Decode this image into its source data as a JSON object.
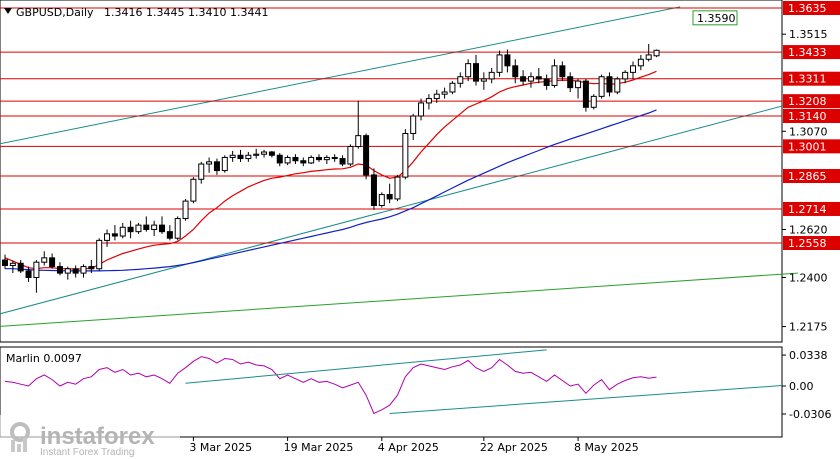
{
  "header": {
    "symbol_label": "GBPUSD,Daily",
    "ohlc_label": "1.3416 1.3445 1.3410 1.3441"
  },
  "indicator": {
    "label": "Marlin 0.0097"
  },
  "watermark": {
    "brand": "instaforex",
    "tagline": "Instant Forex Trading"
  },
  "colors": {
    "level_line": "#dc0000",
    "level_box": "#dc0000",
    "ma_fast": "#e00000",
    "ma_slow": "#1020c8",
    "channel": "#1a8c8c",
    "long_trend": "#2aa02a",
    "oscillator": "#b000b0",
    "osc_trend": "#1a8c8c",
    "candle": "#000000"
  },
  "chart_data": {
    "type": "candlestick",
    "price_axis_ticks": [
      "1.3515",
      "1.3070",
      "1.2620",
      "1.2400",
      "1.2175"
    ],
    "level_labels": [
      "1.3635",
      "1.3433",
      "1.3311",
      "1.3208",
      "1.3140",
      "1.3001",
      "1.2865",
      "1.2714",
      "1.2558"
    ],
    "levels": [
      1.3635,
      1.3433,
      1.3311,
      1.3208,
      1.314,
      1.3001,
      1.2865,
      1.2714,
      1.2558
    ],
    "channel_label": "1.3590",
    "channel_value": 1.359,
    "time_labels": [
      "3 Mar 2025",
      "19 Mar 2025",
      "4 Apr 2025",
      "22 Apr 2025",
      "8 May 2025"
    ],
    "time_label_indices": [
      24,
      36,
      48,
      61,
      73
    ],
    "osc_axis_labels": [
      "0.0338",
      "0.00",
      "-0.0306"
    ],
    "osc_ticks": [
      0.0338,
      0.0,
      -0.0306
    ],
    "candles": [
      [
        1.248,
        1.2505,
        1.244,
        1.2455
      ],
      [
        1.2455,
        1.2478,
        1.242,
        1.2465
      ],
      [
        1.2465,
        1.248,
        1.242,
        1.243
      ],
      [
        1.243,
        1.245,
        1.238,
        1.24
      ],
      [
        1.24,
        1.248,
        1.233,
        1.247
      ],
      [
        1.247,
        1.252,
        1.2455,
        1.249
      ],
      [
        1.249,
        1.251,
        1.244,
        1.245
      ],
      [
        1.245,
        1.247,
        1.241,
        1.242
      ],
      [
        1.242,
        1.245,
        1.239,
        1.244
      ],
      [
        1.244,
        1.2455,
        1.24,
        1.242
      ],
      [
        1.242,
        1.246,
        1.24,
        1.245
      ],
      [
        1.245,
        1.248,
        1.242,
        1.244
      ],
      [
        1.244,
        1.258,
        1.243,
        1.257
      ],
      [
        1.257,
        1.262,
        1.254,
        1.26
      ],
      [
        1.26,
        1.264,
        1.257,
        1.259
      ],
      [
        1.259,
        1.265,
        1.258,
        1.263
      ],
      [
        1.263,
        1.266,
        1.258,
        1.261
      ],
      [
        1.261,
        1.265,
        1.26,
        1.264
      ],
      [
        1.264,
        1.268,
        1.261,
        1.262
      ],
      [
        1.262,
        1.266,
        1.259,
        1.264
      ],
      [
        1.264,
        1.268,
        1.26,
        1.261
      ],
      [
        1.261,
        1.264,
        1.257,
        1.258
      ],
      [
        1.258,
        1.268,
        1.257,
        1.267
      ],
      [
        1.267,
        1.276,
        1.266,
        1.275
      ],
      [
        1.275,
        1.286,
        1.274,
        1.285
      ],
      [
        1.285,
        1.293,
        1.283,
        1.292
      ],
      [
        1.292,
        1.295,
        1.288,
        1.293
      ],
      [
        1.293,
        1.2945,
        1.287,
        1.289
      ],
      [
        1.289,
        1.296,
        1.288,
        1.295
      ],
      [
        1.295,
        1.298,
        1.293,
        1.296
      ],
      [
        1.296,
        1.2985,
        1.293,
        1.2945
      ],
      [
        1.2945,
        1.2975,
        1.293,
        1.296
      ],
      [
        1.296,
        1.299,
        1.2945,
        1.2965
      ],
      [
        1.2965,
        1.2985,
        1.295,
        1.2975
      ],
      [
        1.2975,
        1.298,
        1.295,
        1.296
      ],
      [
        1.296,
        1.297,
        1.291,
        1.2925
      ],
      [
        1.2925,
        1.296,
        1.2915,
        1.295
      ],
      [
        1.295,
        1.2965,
        1.292,
        1.2935
      ],
      [
        1.2935,
        1.295,
        1.291,
        1.2925
      ],
      [
        1.2925,
        1.296,
        1.292,
        1.295
      ],
      [
        1.295,
        1.2965,
        1.293,
        1.294
      ],
      [
        1.294,
        1.296,
        1.292,
        1.295
      ],
      [
        1.295,
        1.2965,
        1.293,
        1.2945
      ],
      [
        1.2945,
        1.296,
        1.291,
        1.292
      ],
      [
        1.292,
        1.301,
        1.291,
        1.3
      ],
      [
        1.3,
        1.321,
        1.299,
        1.305
      ],
      [
        1.305,
        1.306,
        1.285,
        1.287
      ],
      [
        1.287,
        1.29,
        1.271,
        1.273
      ],
      [
        1.273,
        1.279,
        1.272,
        1.278
      ],
      [
        1.278,
        1.283,
        1.274,
        1.276
      ],
      [
        1.276,
        1.287,
        1.275,
        1.286
      ],
      [
        1.286,
        1.308,
        1.285,
        1.306
      ],
      [
        1.306,
        1.315,
        1.303,
        1.314
      ],
      [
        1.314,
        1.322,
        1.312,
        1.32
      ],
      [
        1.32,
        1.324,
        1.317,
        1.322
      ],
      [
        1.322,
        1.326,
        1.32,
        1.324
      ],
      [
        1.324,
        1.327,
        1.322,
        1.325
      ],
      [
        1.325,
        1.33,
        1.324,
        1.329
      ],
      [
        1.329,
        1.334,
        1.327,
        1.332
      ],
      [
        1.332,
        1.34,
        1.33,
        1.338
      ],
      [
        1.338,
        1.342,
        1.328,
        1.33
      ],
      [
        1.33,
        1.334,
        1.326,
        1.331
      ],
      [
        1.331,
        1.336,
        1.329,
        1.334
      ],
      [
        1.334,
        1.344,
        1.332,
        1.342
      ],
      [
        1.342,
        1.3445,
        1.334,
        1.337
      ],
      [
        1.337,
        1.34,
        1.329,
        1.332
      ],
      [
        1.332,
        1.335,
        1.328,
        1.33
      ],
      [
        1.33,
        1.334,
        1.327,
        1.332
      ],
      [
        1.332,
        1.336,
        1.329,
        1.331
      ],
      [
        1.331,
        1.333,
        1.326,
        1.328
      ],
      [
        1.328,
        1.34,
        1.327,
        1.337
      ],
      [
        1.337,
        1.339,
        1.33,
        1.332
      ],
      [
        1.332,
        1.334,
        1.325,
        1.327
      ],
      [
        1.327,
        1.331,
        1.322,
        1.33
      ],
      [
        1.33,
        1.331,
        1.316,
        1.318
      ],
      [
        1.318,
        1.324,
        1.317,
        1.323
      ],
      [
        1.323,
        1.333,
        1.322,
        1.332
      ],
      [
        1.332,
        1.334,
        1.323,
        1.325
      ],
      [
        1.325,
        1.332,
        1.324,
        1.331
      ],
      [
        1.331,
        1.335,
        1.329,
        1.334
      ],
      [
        1.334,
        1.339,
        1.331,
        1.337
      ],
      [
        1.337,
        1.342,
        1.335,
        1.34
      ],
      [
        1.34,
        1.347,
        1.339,
        1.342
      ],
      [
        1.3416,
        1.3445,
        1.341,
        1.3441
      ]
    ],
    "ma_fast": [
      1.249,
      1.2475,
      1.246,
      1.2445,
      1.244,
      1.2445,
      1.2445,
      1.244,
      1.244,
      1.2438,
      1.244,
      1.2442,
      1.246,
      1.248,
      1.2495,
      1.251,
      1.252,
      1.253,
      1.254,
      1.2548,
      1.2552,
      1.2555,
      1.2565,
      1.259,
      1.262,
      1.266,
      1.2695,
      1.272,
      1.275,
      1.2775,
      1.2795,
      1.2815,
      1.283,
      1.2845,
      1.2855,
      1.286,
      1.2868,
      1.2875,
      1.288,
      1.2886,
      1.289,
      1.2894,
      1.2897,
      1.2898,
      1.2905,
      1.292,
      1.2915,
      1.289,
      1.287,
      1.2855,
      1.286,
      1.289,
      1.293,
      1.2975,
      1.3015,
      1.3055,
      1.309,
      1.312,
      1.315,
      1.318,
      1.3195,
      1.321,
      1.3228,
      1.325,
      1.3265,
      1.3275,
      1.3282,
      1.329,
      1.3295,
      1.3298,
      1.3302,
      1.3304,
      1.3303,
      1.33,
      1.3292,
      1.3288,
      1.329,
      1.3285,
      1.3288,
      1.3295,
      1.3305,
      1.3318,
      1.333,
      1.3345
    ],
    "ma_slow": [
      1.244,
      1.244,
      1.2438,
      1.2436,
      1.2434,
      1.2433,
      1.2432,
      1.2431,
      1.243,
      1.243,
      1.243,
      1.243,
      1.243,
      1.2431,
      1.2432,
      1.2433,
      1.2435,
      1.2437,
      1.244,
      1.2443,
      1.2446,
      1.245,
      1.2455,
      1.2461,
      1.2468,
      1.2476,
      1.2484,
      1.2492,
      1.25,
      1.2508,
      1.2516,
      1.2524,
      1.2532,
      1.254,
      1.2548,
      1.2556,
      1.2564,
      1.2572,
      1.258,
      1.2588,
      1.2596,
      1.2604,
      1.2612,
      1.262,
      1.263,
      1.2642,
      1.2652,
      1.266,
      1.2668,
      1.2678,
      1.269,
      1.2705,
      1.272,
      1.2738,
      1.2756,
      1.2774,
      1.2792,
      1.281,
      1.2828,
      1.2846,
      1.2862,
      1.2878,
      1.2894,
      1.291,
      1.2926,
      1.294,
      1.2954,
      1.2968,
      1.2982,
      1.2996,
      1.301,
      1.3022,
      1.3034,
      1.3046,
      1.3058,
      1.307,
      1.3082,
      1.3094,
      1.3106,
      1.3118,
      1.313,
      1.3142,
      1.3154,
      1.3168
    ],
    "oscillator": [
      0.005,
      0.004,
      0.002,
      0.0,
      0.008,
      0.012,
      0.007,
      0.0,
      0.004,
      0.002,
      0.008,
      0.01,
      0.018,
      0.02,
      0.015,
      0.018,
      0.012,
      0.014,
      0.01,
      0.012,
      0.008,
      0.003,
      0.014,
      0.02,
      0.027,
      0.032,
      0.03,
      0.025,
      0.03,
      0.029,
      0.024,
      0.026,
      0.023,
      0.022,
      0.018,
      0.008,
      0.012,
      0.008,
      0.004,
      0.008,
      0.004,
      0.005,
      0.002,
      -0.002,
      0.001,
      0.004,
      -0.01,
      -0.03,
      -0.026,
      -0.021,
      -0.01,
      0.01,
      0.02,
      0.024,
      0.022,
      0.02,
      0.018,
      0.021,
      0.023,
      0.028,
      0.02,
      0.016,
      0.02,
      0.029,
      0.023,
      0.016,
      0.014,
      0.015,
      0.01,
      0.005,
      0.012,
      0.006,
      0.0,
      0.002,
      -0.008,
      0.001,
      0.007,
      -0.004,
      0.002,
      0.006,
      0.009,
      0.01,
      0.0085,
      0.0097
    ]
  }
}
